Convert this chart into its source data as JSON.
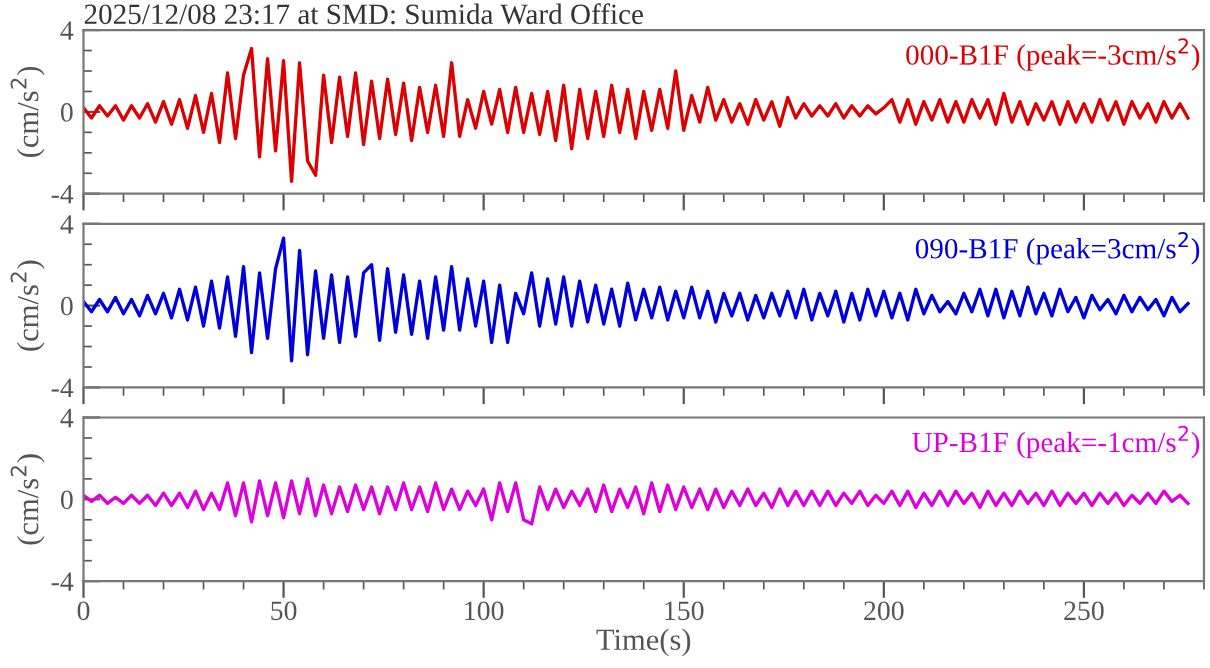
{
  "chart_data": [
    {
      "type": "line",
      "title": "2025/12/08 23:17 at SMD: Sumida Ward Office",
      "ylabel": "(cm/s$^{2}$)",
      "xlim": [
        0,
        280
      ],
      "xticks": [
        0,
        50,
        100,
        150,
        200,
        250
      ],
      "ylim": [
        -4,
        4
      ],
      "yticks": [
        -4,
        0,
        4
      ],
      "tick_labels": "y",
      "grid": false,
      "legend": false,
      "x": [
        0,
        2,
        4,
        6,
        8,
        10,
        12,
        14,
        16,
        18,
        20,
        22,
        24,
        26,
        28,
        30,
        32,
        34,
        36,
        38,
        40,
        42,
        44,
        46,
        48,
        50,
        52,
        54,
        56,
        58,
        60,
        62,
        64,
        66,
        68,
        70,
        72,
        74,
        76,
        78,
        80,
        82,
        84,
        86,
        88,
        90,
        92,
        94,
        96,
        98,
        100,
        102,
        104,
        106,
        108,
        110,
        112,
        114,
        116,
        118,
        120,
        122,
        124,
        126,
        128,
        130,
        132,
        134,
        136,
        138,
        140,
        142,
        144,
        146,
        148,
        150,
        152,
        154,
        156,
        158,
        160,
        162,
        164,
        166,
        168,
        170,
        172,
        174,
        176,
        178,
        180,
        182,
        184,
        186,
        188,
        190,
        192,
        194,
        196,
        198,
        200,
        202,
        204,
        206,
        208,
        210,
        212,
        214,
        216,
        218,
        220,
        222,
        224,
        226,
        228,
        230,
        232,
        234,
        236,
        238,
        240,
        242,
        244,
        246,
        248,
        250,
        252,
        254,
        256,
        258,
        260,
        262,
        264,
        266,
        268,
        270,
        272,
        274,
        276
      ],
      "series": [
        {
          "name": "000-B1F (peak=-3cm/s$^{2}$)",
          "color": "#dd0000",
          "values": [
            0.2,
            -0.3,
            0.3,
            -0.2,
            0.3,
            -0.4,
            0.3,
            -0.3,
            0.4,
            -0.5,
            0.5,
            -0.6,
            0.6,
            -0.8,
            0.8,
            -1.0,
            0.9,
            -1.5,
            1.9,
            -1.3,
            1.8,
            3.1,
            -2.2,
            2.6,
            -1.9,
            2.5,
            -3.4,
            2.4,
            -2.4,
            -3.1,
            1.8,
            -1.5,
            1.7,
            -1.2,
            1.9,
            -1.6,
            1.5,
            -1.3,
            1.6,
            -1.1,
            1.4,
            -1.4,
            1.2,
            -1.0,
            1.3,
            -1.2,
            2.4,
            -1.2,
            0.6,
            -0.8,
            1.0,
            -0.6,
            1.1,
            -1.0,
            1.2,
            -1.0,
            0.9,
            -1.1,
            1.0,
            -1.4,
            1.3,
            -1.8,
            1.1,
            -1.3,
            1.0,
            -1.2,
            1.3,
            -1.0,
            1.1,
            -1.3,
            1.0,
            -0.9,
            1.1,
            -0.8,
            2.0,
            -0.9,
            0.8,
            -0.5,
            1.2,
            -0.4,
            0.6,
            -0.5,
            0.4,
            -0.6,
            0.6,
            -0.4,
            0.5,
            -0.7,
            0.7,
            -0.3,
            0.4,
            -0.2,
            0.3,
            -0.2,
            0.4,
            -0.3,
            0.3,
            -0.2,
            0.3,
            -0.1,
            0.2,
            0.6,
            -0.5,
            0.6,
            -0.6,
            0.5,
            -0.4,
            0.6,
            -0.5,
            0.5,
            -0.5,
            0.6,
            -0.3,
            0.6,
            -0.6,
            0.9,
            -0.5,
            0.5,
            -0.6,
            0.4,
            -0.4,
            0.5,
            -0.6,
            0.5,
            -0.5,
            0.4,
            -0.5,
            0.6,
            -0.4,
            0.5,
            -0.6,
            0.5,
            -0.3,
            0.4,
            -0.5,
            0.5,
            -0.3,
            0.4,
            -0.3
          ]
        }
      ]
    },
    {
      "type": "line",
      "ylabel": "(cm/s$^{2}$)",
      "xlim": [
        0,
        280
      ],
      "xticks": [
        0,
        50,
        100,
        150,
        200,
        250
      ],
      "ylim": [
        -4,
        4
      ],
      "yticks": [
        -4,
        0,
        4
      ],
      "tick_labels": "y",
      "grid": false,
      "legend": false,
      "x": [
        0,
        2,
        4,
        6,
        8,
        10,
        12,
        14,
        16,
        18,
        20,
        22,
        24,
        26,
        28,
        30,
        32,
        34,
        36,
        38,
        40,
        42,
        44,
        46,
        48,
        50,
        52,
        54,
        56,
        58,
        60,
        62,
        64,
        66,
        68,
        70,
        72,
        74,
        76,
        78,
        80,
        82,
        84,
        86,
        88,
        90,
        92,
        94,
        96,
        98,
        100,
        102,
        104,
        106,
        108,
        110,
        112,
        114,
        116,
        118,
        120,
        122,
        124,
        126,
        128,
        130,
        132,
        134,
        136,
        138,
        140,
        142,
        144,
        146,
        148,
        150,
        152,
        154,
        156,
        158,
        160,
        162,
        164,
        166,
        168,
        170,
        172,
        174,
        176,
        178,
        180,
        182,
        184,
        186,
        188,
        190,
        192,
        194,
        196,
        198,
        200,
        202,
        204,
        206,
        208,
        210,
        212,
        214,
        216,
        218,
        220,
        222,
        224,
        226,
        228,
        230,
        232,
        234,
        236,
        238,
        240,
        242,
        244,
        246,
        248,
        250,
        252,
        254,
        256,
        258,
        260,
        262,
        264,
        266,
        268,
        270,
        272,
        274,
        276
      ],
      "series": [
        {
          "name": "090-B1F (peak=3cm/s$^{2}$)",
          "color": "#0000dd",
          "values": [
            0.2,
            -0.3,
            0.3,
            -0.3,
            0.4,
            -0.4,
            0.3,
            -0.5,
            0.5,
            -0.4,
            0.6,
            -0.6,
            0.8,
            -0.7,
            0.9,
            -1.0,
            1.2,
            -1.1,
            1.4,
            -1.5,
            1.9,
            -2.3,
            1.6,
            -1.6,
            1.8,
            3.3,
            -2.7,
            2.7,
            -2.4,
            1.7,
            -1.6,
            1.5,
            -1.8,
            1.4,
            -1.5,
            1.6,
            2.0,
            -1.7,
            1.8,
            -1.3,
            1.5,
            -1.4,
            1.2,
            -1.6,
            1.4,
            -1.2,
            1.9,
            -1.2,
            1.3,
            -1.0,
            1.2,
            -1.8,
            1.0,
            -1.8,
            0.6,
            -0.4,
            1.6,
            -1.0,
            1.3,
            -0.9,
            1.4,
            -1.0,
            1.2,
            -0.8,
            1.0,
            -0.9,
            0.8,
            -1.0,
            1.1,
            -0.7,
            0.8,
            -0.6,
            0.9,
            -0.7,
            0.7,
            -0.6,
            0.9,
            -0.6,
            0.7,
            -0.8,
            0.6,
            -0.5,
            0.6,
            -0.7,
            0.5,
            -0.6,
            0.6,
            -0.5,
            0.7,
            -0.6,
            0.8,
            -0.7,
            0.6,
            -0.5,
            0.7,
            -0.8,
            0.6,
            -0.7,
            0.8,
            -0.5,
            0.7,
            -0.6,
            0.6,
            -0.7,
            0.8,
            -0.4,
            0.5,
            -0.3,
            0.2,
            -0.4,
            0.6,
            -0.3,
            0.8,
            -0.5,
            0.8,
            -0.6,
            0.7,
            -0.5,
            0.9,
            -0.4,
            0.6,
            -0.5,
            0.8,
            -0.3,
            0.4,
            -0.6,
            0.5,
            -0.2,
            0.3,
            -0.4,
            0.5,
            -0.3,
            0.4,
            -0.2,
            0.3,
            -0.5,
            0.4,
            -0.3,
            0.1
          ]
        }
      ]
    },
    {
      "type": "line",
      "xlabel": "Time(s)",
      "ylabel": "(cm/s$^{2}$)",
      "xlim": [
        0,
        280
      ],
      "xticks": [
        0,
        50,
        100,
        150,
        200,
        250
      ],
      "ylim": [
        -4,
        4
      ],
      "yticks": [
        -4,
        0,
        4
      ],
      "grid": false,
      "legend": false,
      "x": [
        0,
        2,
        4,
        6,
        8,
        10,
        12,
        14,
        16,
        18,
        20,
        22,
        24,
        26,
        28,
        30,
        32,
        34,
        36,
        38,
        40,
        42,
        44,
        46,
        48,
        50,
        52,
        54,
        56,
        58,
        60,
        62,
        64,
        66,
        68,
        70,
        72,
        74,
        76,
        78,
        80,
        82,
        84,
        86,
        88,
        90,
        92,
        94,
        96,
        98,
        100,
        102,
        104,
        106,
        108,
        110,
        112,
        114,
        116,
        118,
        120,
        122,
        124,
        126,
        128,
        130,
        132,
        134,
        136,
        138,
        140,
        142,
        144,
        146,
        148,
        150,
        152,
        154,
        156,
        158,
        160,
        162,
        164,
        166,
        168,
        170,
        172,
        174,
        176,
        178,
        180,
        182,
        184,
        186,
        188,
        190,
        192,
        194,
        196,
        198,
        200,
        202,
        204,
        206,
        208,
        210,
        212,
        214,
        216,
        218,
        220,
        222,
        224,
        226,
        228,
        230,
        232,
        234,
        236,
        238,
        240,
        242,
        244,
        246,
        248,
        250,
        252,
        254,
        256,
        258,
        260,
        262,
        264,
        266,
        268,
        270,
        272,
        274,
        276
      ],
      "series": [
        {
          "name": "UP-B1F (peak=-1cm/s$^{2}$)",
          "color": "#dd00dd",
          "values": [
            0.2,
            -0.1,
            0.2,
            -0.2,
            0.1,
            -0.2,
            0.2,
            -0.2,
            0.2,
            -0.3,
            0.3,
            -0.3,
            0.3,
            -0.4,
            0.4,
            -0.5,
            0.3,
            -0.5,
            0.8,
            -0.8,
            0.8,
            -1.1,
            0.9,
            -0.8,
            0.8,
            -0.9,
            0.9,
            -0.7,
            1.0,
            -0.8,
            0.7,
            -0.7,
            0.6,
            -0.6,
            0.7,
            -0.5,
            0.6,
            -0.7,
            0.6,
            -0.5,
            0.8,
            -0.5,
            0.6,
            -0.6,
            0.8,
            -0.5,
            0.5,
            -0.5,
            0.4,
            -0.3,
            0.5,
            -1.0,
            0.8,
            -0.6,
            0.8,
            -1.0,
            -1.2,
            0.6,
            -0.5,
            0.5,
            -0.4,
            0.4,
            -0.3,
            0.5,
            -0.6,
            0.7,
            -0.6,
            0.5,
            -0.4,
            0.6,
            -0.7,
            0.8,
            -0.6,
            0.7,
            -0.5,
            0.6,
            -0.4,
            0.5,
            -0.5,
            0.5,
            -0.4,
            0.4,
            -0.3,
            0.5,
            -0.3,
            0.3,
            -0.4,
            0.5,
            -0.3,
            0.4,
            -0.3,
            0.4,
            -0.3,
            0.4,
            -0.3,
            0.3,
            -0.2,
            0.4,
            -0.3,
            0.2,
            -0.2,
            0.4,
            -0.3,
            0.4,
            -0.4,
            0.3,
            -0.3,
            0.4,
            -0.3,
            0.4,
            -0.2,
            0.3,
            -0.4,
            0.4,
            -0.3,
            0.3,
            -0.3,
            0.4,
            -0.2,
            0.3,
            -0.3,
            0.4,
            -0.3,
            0.3,
            -0.2,
            0.3,
            -0.3,
            0.3,
            -0.2,
            0.3,
            -0.3,
            0.2,
            -0.2,
            0.3,
            -0.2,
            0.4,
            -0.1,
            0.2,
            -0.2
          ]
        }
      ]
    }
  ]
}
